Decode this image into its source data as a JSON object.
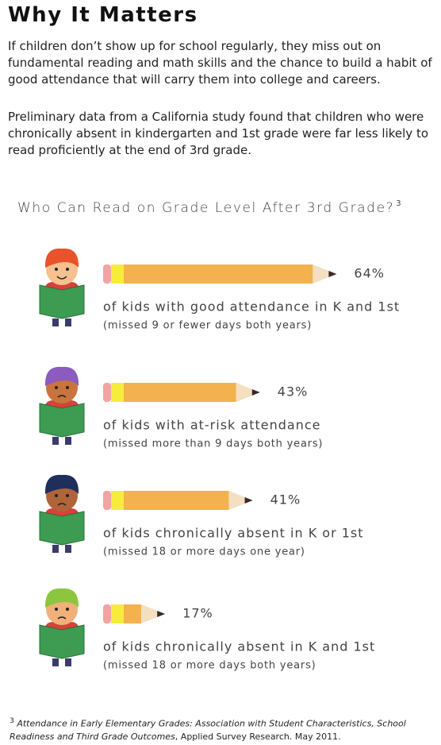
{
  "header": {
    "title": "Why It Matters"
  },
  "paragraphs": [
    "If children don’t show up for school regularly, they miss out on fundamental reading and math skills and the chance to build a habit of good attendance that will carry them into college and careers.",
    "Preliminary data from a California study found that children who were chronically absent in kindergarten and 1st grade were far less likely to read proficiently at the end of 3rd grade."
  ],
  "chart_data": {
    "type": "pencil-bar",
    "title": "Who Can Read on Grade Level After 3rd Grade?",
    "title_note": "3",
    "categories": [
      "of kids with good attendance in K and 1st",
      "of kids with at-risk attendance",
      "of kids chronically absent in K or 1st",
      "of kids chronically absent in K and 1st"
    ],
    "category_notes": [
      "(missed 9 or fewer days both years)",
      "(missed more than 9 days both years)",
      "(missed 18 or more days one year)",
      "(missed 18 or more days both years)"
    ],
    "values": [
      64,
      43,
      41,
      17
    ],
    "value_labels": [
      "64%",
      "43%",
      "41%",
      "17%"
    ],
    "color": "#f3b24e"
  },
  "footnote": {
    "marker": "3",
    "title": "Attendance in Early Elementary Grades: Association with Student Characteristics, School Readiness and Third Grade Outcomes",
    "source": ", Applied Survey Research. May 2011."
  }
}
